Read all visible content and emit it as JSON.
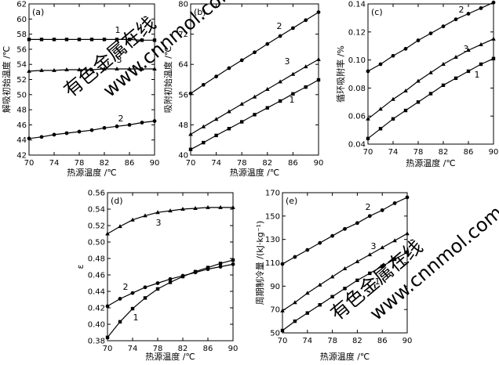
{
  "watermark": {
    "line1": "有色金属在线",
    "line2": "www.cnnmol.com"
  },
  "chart_data": [
    {
      "panel": "(a)",
      "type": "line",
      "xlabel": "热源温度 /℃",
      "ylabel": "解吸初始温度 /℃",
      "xlim": [
        70,
        90
      ],
      "ylim": [
        42,
        62
      ],
      "xticks": [
        70,
        74,
        78,
        82,
        86,
        90
      ],
      "yticks": [
        42,
        44,
        46,
        48,
        50,
        52,
        54,
        56,
        58,
        60,
        62
      ],
      "x": [
        70,
        72,
        74,
        76,
        78,
        80,
        82,
        84,
        86,
        88,
        90
      ],
      "series": [
        {
          "label": "1",
          "marker": "square",
          "values": [
            57.3,
            57.3,
            57.3,
            57.3,
            57.3,
            57.3,
            57.3,
            57.3,
            57.3,
            57.2,
            57.2
          ]
        },
        {
          "label": "3",
          "marker": "triangle",
          "values": [
            53.1,
            53.2,
            53.2,
            53.3,
            53.3,
            53.3,
            53.4,
            53.4,
            53.4,
            53.4,
            53.4
          ]
        },
        {
          "label": "2",
          "marker": "circle",
          "values": [
            44.2,
            44.4,
            44.7,
            44.9,
            45.1,
            45.3,
            45.6,
            45.8,
            46.0,
            46.3,
            46.5
          ]
        }
      ]
    },
    {
      "panel": "(b)",
      "type": "line",
      "xlabel": "热源温度 /℃",
      "ylabel": "吸附初始温度 /℃",
      "xlim": [
        70,
        90
      ],
      "ylim": [
        40,
        80
      ],
      "xticks": [
        70,
        74,
        78,
        82,
        86,
        90
      ],
      "yticks": [
        40,
        48,
        56,
        64,
        72,
        80
      ],
      "x": [
        70,
        72,
        74,
        76,
        78,
        80,
        82,
        84,
        86,
        88,
        90
      ],
      "series": [
        {
          "label": "2",
          "marker": "circle",
          "values": [
            56.3,
            58.6,
            60.8,
            63.0,
            65.1,
            67.2,
            69.4,
            71.5,
            73.6,
            75.7,
            77.8
          ]
        },
        {
          "label": "3",
          "marker": "triangle",
          "values": [
            45.5,
            47.5,
            49.5,
            51.5,
            53.5,
            55.4,
            57.4,
            59.4,
            61.4,
            63.4,
            65.3
          ]
        },
        {
          "label": "1",
          "marker": "square",
          "values": [
            41.5,
            43.3,
            45.2,
            47.0,
            48.8,
            50.7,
            52.5,
            54.3,
            56.2,
            58.0,
            59.9
          ]
        }
      ]
    },
    {
      "panel": "(c)",
      "type": "line",
      "xlabel": "热源温度 /℃",
      "ylabel": "循环吸附率 /%",
      "xlim": [
        70,
        90
      ],
      "ylim": [
        0.04,
        0.14
      ],
      "xticks": [
        70,
        74,
        78,
        82,
        86,
        90
      ],
      "yticks": [
        0.04,
        0.06,
        0.08,
        0.1,
        0.12,
        0.14
      ],
      "x": [
        70,
        72,
        74,
        76,
        78,
        80,
        82,
        84,
        86,
        88,
        90
      ],
      "series": [
        {
          "label": "2",
          "marker": "circle",
          "values": [
            0.092,
            0.097,
            0.103,
            0.108,
            0.114,
            0.119,
            0.124,
            0.129,
            0.133,
            0.137,
            0.141
          ]
        },
        {
          "label": "3",
          "marker": "triangle",
          "values": [
            0.058,
            0.065,
            0.072,
            0.078,
            0.085,
            0.091,
            0.097,
            0.102,
            0.107,
            0.111,
            0.115
          ]
        },
        {
          "label": "1",
          "marker": "square",
          "values": [
            0.044,
            0.051,
            0.058,
            0.064,
            0.07,
            0.076,
            0.082,
            0.087,
            0.092,
            0.097,
            0.101
          ]
        }
      ]
    },
    {
      "panel": "(d)",
      "type": "line",
      "xlabel": "热源温度 /℃",
      "ylabel": "ε",
      "xlim": [
        70,
        90
      ],
      "ylim": [
        0.38,
        0.56
      ],
      "xticks": [
        70,
        74,
        78,
        82,
        86,
        90
      ],
      "yticks": [
        0.38,
        0.4,
        0.42,
        0.44,
        0.46,
        0.48,
        0.5,
        0.52,
        0.54,
        0.56
      ],
      "x": [
        70,
        72,
        74,
        76,
        78,
        80,
        82,
        84,
        86,
        88,
        90
      ],
      "series": [
        {
          "label": "3",
          "marker": "triangle",
          "values": [
            0.51,
            0.519,
            0.527,
            0.532,
            0.536,
            0.538,
            0.54,
            0.541,
            0.542,
            0.542,
            0.542
          ]
        },
        {
          "label": "2",
          "marker": "circle",
          "values": [
            0.422,
            0.431,
            0.438,
            0.445,
            0.45,
            0.455,
            0.459,
            0.463,
            0.467,
            0.47,
            0.473
          ]
        },
        {
          "label": "1",
          "marker": "square",
          "values": [
            0.384,
            0.403,
            0.419,
            0.432,
            0.443,
            0.451,
            0.458,
            0.464,
            0.469,
            0.474,
            0.478
          ]
        }
      ]
    },
    {
      "panel": "(e)",
      "type": "line",
      "xlabel": "热源温度 /℃",
      "ylabel": "周期制冷量 /(kJ·kg⁻¹)",
      "xlim": [
        70,
        90
      ],
      "ylim": [
        50,
        170
      ],
      "xticks": [
        70,
        74,
        78,
        82,
        86,
        90
      ],
      "yticks": [
        50,
        70,
        90,
        110,
        130,
        150,
        170
      ],
      "x": [
        70,
        72,
        74,
        76,
        78,
        80,
        82,
        84,
        86,
        88,
        90
      ],
      "series": [
        {
          "label": "2",
          "marker": "circle",
          "values": [
            109,
            115,
            121,
            127,
            133,
            139,
            144,
            150,
            155,
            161,
            166
          ]
        },
        {
          "label": "3",
          "marker": "triangle",
          "values": [
            69,
            76,
            84,
            91,
            98,
            105,
            111,
            117,
            123,
            129,
            135
          ]
        },
        {
          "label": "1",
          "marker": "square",
          "values": [
            52,
            60,
            67,
            74,
            81,
            88,
            95,
            101,
            107,
            113,
            119
          ]
        }
      ]
    }
  ]
}
